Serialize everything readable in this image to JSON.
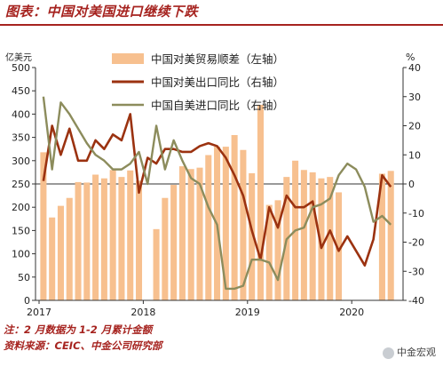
{
  "header": {
    "title": "图表：中国对美国进口继续下跌"
  },
  "notes": {
    "note": "注：2 月数据为 1-2 月累计金额",
    "source": "资料来源：CEIC、中金公司研究部",
    "watermark": "中金宏观"
  },
  "chart_data": {
    "type": "bar+line",
    "left_unit": "亿美元",
    "right_unit": "%",
    "left_ticks": [
      "0",
      "50",
      "100",
      "150",
      "200",
      "250",
      "300",
      "350",
      "400",
      "450",
      "500"
    ],
    "right_ticks": [
      "-40",
      "-30",
      "-20",
      "-10",
      "0",
      "10",
      "20",
      "30",
      "40"
    ],
    "ylim_left": [
      0,
      500
    ],
    "ylim_right": [
      -40,
      40
    ],
    "x_tick_labels": [
      "2017",
      "2018",
      "2019",
      "2020"
    ],
    "legend": [
      {
        "name": "中国对美贸易顺差（左轴）",
        "color": "#f7c08f",
        "kind": "bar"
      },
      {
        "name": "中国对美出口同比（右轴）",
        "color": "#9b3210",
        "kind": "line"
      },
      {
        "name": "中国自美进口同比（右轴）",
        "color": "#8c8c5c",
        "kind": "line"
      }
    ],
    "months": [
      "2017-01",
      "2017-02",
      "2017-03",
      "2017-04",
      "2017-05",
      "2017-06",
      "2017-07",
      "2017-08",
      "2017-09",
      "2017-10",
      "2017-11",
      "2017-12",
      "2018-01",
      "2018-02",
      "2018-03",
      "2018-04",
      "2018-05",
      "2018-06",
      "2018-07",
      "2018-08",
      "2018-09",
      "2018-10",
      "2018-11",
      "2018-12",
      "2019-01",
      "2019-02",
      "2019-03",
      "2019-04",
      "2019-05",
      "2019-06",
      "2019-07",
      "2019-08",
      "2019-09",
      "2019-10",
      "2019-11",
      "2019-12",
      "2020-01",
      "2020-02",
      "2020-03",
      "2020-04",
      "2020-05"
    ],
    "series": [
      {
        "name": "中国对美贸易顺差（左轴）",
        "axis": "left",
        "values": [
          318,
          178,
          203,
          220,
          254,
          253,
          270,
          262,
          280,
          265,
          279,
          257,
          null,
          153,
          220,
          248,
          288,
          282,
          285,
          312,
          330,
          330,
          355,
          323,
          273,
          420,
          205,
          215,
          265,
          300,
          280,
          275,
          262,
          265,
          232,
          null,
          null,
          null,
          null,
          272,
          278
        ]
      },
      {
        "name": "中国对美出口同比（右轴）",
        "axis": "right",
        "values": [
          1,
          20,
          10,
          19,
          8,
          8,
          15,
          12,
          17,
          15,
          24,
          -3,
          9,
          7,
          12,
          12,
          11,
          11,
          13,
          14,
          13,
          9,
          3,
          -4,
          -16,
          -26,
          -8,
          -15,
          -4,
          -8,
          -8,
          -6,
          -22,
          -16,
          -23,
          -18,
          -23,
          -28,
          -19,
          3,
          -1
        ]
      },
      {
        "name": "中国自美进口同比（右轴）",
        "axis": "right",
        "values": [
          30,
          5,
          28,
          24,
          19,
          14,
          10,
          8,
          5,
          5,
          7,
          11,
          0,
          20,
          5,
          15,
          8,
          2,
          0,
          -8,
          -14,
          -36,
          -36,
          -35,
          -26,
          -26,
          -27,
          -33,
          -19,
          -16,
          -15,
          -8,
          -7,
          -5,
          3,
          7,
          5,
          -1,
          -13,
          -11,
          -14
        ]
      }
    ]
  }
}
